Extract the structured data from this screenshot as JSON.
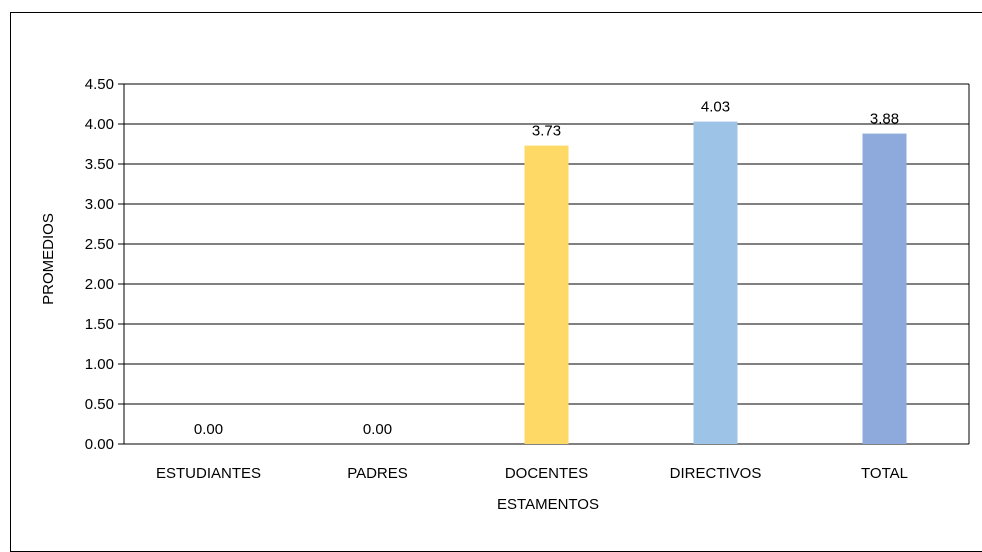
{
  "chart_data": {
    "type": "bar",
    "title": "",
    "xlabel": "ESTAMENTOS",
    "ylabel": "PROMEDIOS",
    "ylim": [
      0,
      4.5
    ],
    "yticks": [
      "0.00",
      "0.50",
      "1.00",
      "1.50",
      "2.00",
      "2.50",
      "3.00",
      "3.50",
      "4.00",
      "4.50"
    ],
    "grid": true,
    "legend": "none",
    "categories": [
      "ESTUDIANTES",
      "PADRES",
      "DOCENTES",
      "DIRECTIVOS",
      "TOTAL"
    ],
    "values": [
      0.0,
      0.0,
      3.73,
      4.03,
      3.88
    ],
    "data_labels": [
      "0.00",
      "0.00",
      "3.73",
      "4.03",
      "3.88"
    ],
    "colors": [
      "#FFD966",
      "#FFD966",
      "#FFD966",
      "#9DC3E6",
      "#8EA9DB"
    ]
  }
}
